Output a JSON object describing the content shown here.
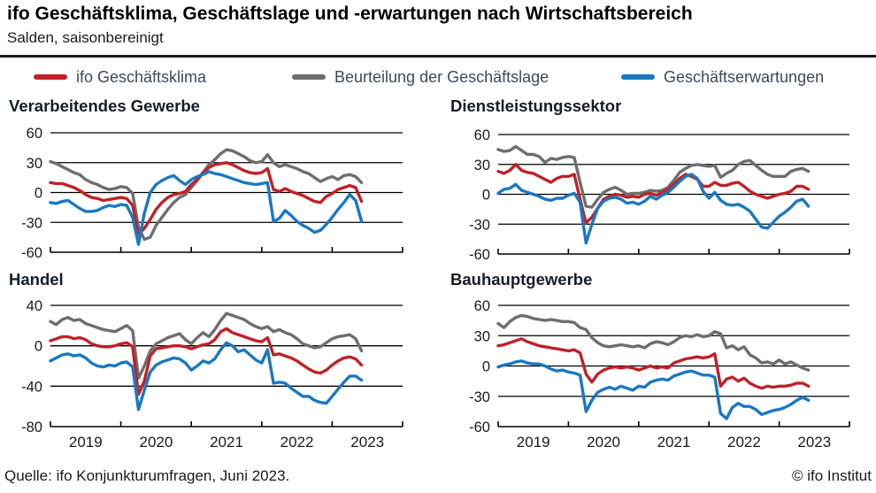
{
  "header": {
    "title": "ifo Geschäftsklima, Geschäftslage und -erwartungen nach Wirtschaftsbereich",
    "subtitle": "Salden, saisonbereinigt"
  },
  "colors": {
    "klima": "#bf2228",
    "lage": "#6e6e6e",
    "erwartungen": "#1a78c2",
    "axis": "#000000",
    "text": "#1a1a1a"
  },
  "legend": [
    {
      "key": "klima",
      "label": "ifo Geschäftsklima"
    },
    {
      "key": "lage",
      "label": "Beurteilung der Geschäftslage"
    },
    {
      "key": "erwartungen",
      "label": "Geschäftserwartungen"
    }
  ],
  "footer": {
    "source": "Quelle:  ifo Konjunkturumfragen,  Juni 2023.",
    "copyright": "© ifo Institut"
  },
  "chart_data": [
    {
      "type": "line",
      "title": "Verarbeitendes Gewerbe",
      "position": "top-left",
      "x_start": "2019-01",
      "x_end": "2023-06",
      "x_tick_labels": [
        "2019",
        "2020",
        "2021",
        "2022",
        "2023"
      ],
      "show_x_labels": false,
      "ylim": [
        -60,
        60
      ],
      "yticks": [
        60,
        30,
        0,
        -30,
        -60
      ],
      "series": [
        {
          "key": "lage",
          "name": "Beurteilung der Geschäftslage",
          "values": [
            31,
            29,
            26,
            23,
            20,
            18,
            13,
            10,
            8,
            5,
            3,
            4,
            6,
            5,
            -1,
            -35,
            -47,
            -45,
            -33,
            -25,
            -17,
            -10,
            -5,
            -2,
            5,
            12,
            20,
            28,
            33,
            39,
            43,
            42,
            39,
            36,
            32,
            30,
            31,
            38,
            30,
            26,
            28,
            26,
            24,
            21,
            19,
            15,
            11,
            14,
            16,
            13,
            17,
            18,
            16,
            10
          ]
        },
        {
          "key": "klima",
          "name": "ifo Geschäftsklima",
          "values": [
            10,
            9,
            9,
            7,
            5,
            2,
            -2,
            -5,
            -6,
            -8,
            -7,
            -6,
            -5,
            -6,
            -13,
            -42,
            -36,
            -27,
            -17,
            -10,
            -5,
            -2,
            -1,
            1,
            8,
            13,
            20,
            25,
            28,
            29,
            30,
            28,
            25,
            22,
            20,
            19,
            20,
            24,
            3,
            1,
            4,
            1,
            -1,
            -3,
            -6,
            -9,
            -10,
            -4,
            -1,
            3,
            5,
            7,
            5,
            -9
          ]
        },
        {
          "key": "erwartungen",
          "name": "Geschäftserwartungen",
          "values": [
            -10,
            -11,
            -9,
            -8,
            -12,
            -16,
            -19,
            -19,
            -18,
            -15,
            -13,
            -14,
            -12,
            -13,
            -25,
            -52,
            -21,
            0,
            8,
            12,
            15,
            17,
            12,
            8,
            13,
            16,
            18,
            21,
            19,
            18,
            16,
            14,
            12,
            10,
            9,
            8,
            9,
            10,
            -29,
            -26,
            -18,
            -23,
            -29,
            -33,
            -36,
            -40,
            -38,
            -32,
            -25,
            -17,
            -10,
            -2,
            -8,
            -29
          ]
        }
      ]
    },
    {
      "type": "line",
      "title": "Dienstleistungssektor",
      "position": "top-right",
      "x_start": "2019-01",
      "x_end": "2023-06",
      "x_tick_labels": [
        "2019",
        "2020",
        "2021",
        "2022",
        "2023"
      ],
      "show_x_labels": false,
      "ylim": [
        -60,
        60
      ],
      "yticks": [
        60,
        30,
        0,
        -30,
        -60
      ],
      "series": [
        {
          "key": "lage",
          "name": "Beurteilung der Geschäftslage",
          "values": [
            45,
            43,
            44,
            48,
            44,
            40,
            40,
            38,
            32,
            36,
            35,
            37,
            38,
            37,
            12,
            -12,
            -13,
            -5,
            2,
            5,
            7,
            4,
            0,
            1,
            1,
            2,
            4,
            3,
            4,
            7,
            14,
            22,
            26,
            29,
            30,
            29,
            28,
            29,
            17,
            21,
            24,
            30,
            33,
            34,
            29,
            24,
            20,
            18,
            18,
            18,
            23,
            25,
            26,
            23
          ]
        },
        {
          "key": "klima",
          "name": "ifo Geschäftsklima",
          "values": [
            23,
            21,
            24,
            30,
            24,
            22,
            21,
            18,
            15,
            12,
            16,
            18,
            18,
            20,
            -5,
            -29,
            -23,
            -14,
            -5,
            -2,
            0,
            -1,
            -3,
            -2,
            -3,
            0,
            1,
            -1,
            2,
            5,
            10,
            16,
            20,
            18,
            15,
            8,
            8,
            12,
            9,
            9,
            11,
            12,
            8,
            3,
            0,
            -2,
            -4,
            -2,
            0,
            1,
            3,
            8,
            8,
            5
          ]
        },
        {
          "key": "erwartungen",
          "name": "Geschäftserwartungen",
          "values": [
            1,
            5,
            6,
            10,
            4,
            2,
            0,
            -2,
            -5,
            -6,
            -4,
            -4,
            -1,
            1,
            -8,
            -49,
            -30,
            -14,
            -7,
            -4,
            -3,
            -5,
            -9,
            -8,
            -10,
            -7,
            -2,
            -5,
            -1,
            2,
            7,
            13,
            18,
            20,
            16,
            3,
            -4,
            2,
            -6,
            -10,
            -11,
            -10,
            -13,
            -17,
            -25,
            -33,
            -34,
            -28,
            -22,
            -18,
            -13,
            -7,
            -5,
            -12
          ]
        }
      ]
    },
    {
      "type": "line",
      "title": "Handel",
      "position": "bottom-left",
      "x_start": "2019-01",
      "x_end": "2023-06",
      "x_tick_labels": [
        "2019",
        "2020",
        "2021",
        "2022",
        "2023"
      ],
      "show_x_labels": true,
      "ylim": [
        -80,
        40
      ],
      "yticks": [
        40,
        0,
        -40,
        -80
      ],
      "series": [
        {
          "key": "lage",
          "name": "Beurteilung der Geschäftslage",
          "values": [
            24,
            21,
            26,
            28,
            25,
            26,
            22,
            20,
            18,
            16,
            15,
            14,
            17,
            20,
            15,
            -32,
            -20,
            -5,
            2,
            5,
            8,
            10,
            12,
            6,
            2,
            8,
            13,
            9,
            16,
            25,
            32,
            30,
            28,
            26,
            22,
            19,
            17,
            19,
            14,
            16,
            13,
            11,
            7,
            2,
            0,
            -2,
            -1,
            3,
            7,
            9,
            10,
            11,
            7,
            -5
          ]
        },
        {
          "key": "klima",
          "name": "ifo Geschäftsklima",
          "values": [
            5,
            7,
            9,
            9,
            7,
            8,
            6,
            2,
            0,
            -1,
            -1,
            0,
            2,
            3,
            -1,
            -48,
            -35,
            -10,
            -3,
            -2,
            -1,
            0,
            0,
            -1,
            -3,
            -1,
            1,
            2,
            6,
            14,
            17,
            13,
            11,
            9,
            7,
            5,
            4,
            8,
            -9,
            -8,
            -10,
            -12,
            -15,
            -19,
            -23,
            -26,
            -27,
            -24,
            -19,
            -15,
            -12,
            -11,
            -13,
            -19
          ]
        },
        {
          "key": "erwartungen",
          "name": "Geschäftserwartungen",
          "values": [
            -15,
            -12,
            -9,
            -8,
            -10,
            -9,
            -12,
            -17,
            -20,
            -21,
            -19,
            -20,
            -17,
            -16,
            -21,
            -63,
            -44,
            -26,
            -19,
            -16,
            -14,
            -12,
            -13,
            -17,
            -24,
            -20,
            -15,
            -17,
            -13,
            -4,
            3,
            0,
            -6,
            -4,
            -9,
            -14,
            -17,
            -4,
            -37,
            -36,
            -37,
            -42,
            -46,
            -50,
            -50,
            -54,
            -56,
            -57,
            -50,
            -43,
            -36,
            -30,
            -30,
            -34
          ]
        }
      ]
    },
    {
      "type": "line",
      "title": "Bauhauptgewerbe",
      "position": "bottom-right",
      "x_start": "2019-01",
      "x_end": "2023-06",
      "x_tick_labels": [
        "2019",
        "2020",
        "2021",
        "2022",
        "2023"
      ],
      "show_x_labels": true,
      "ylim": [
        -60,
        60
      ],
      "yticks": [
        60,
        30,
        0,
        -30,
        -60
      ],
      "series": [
        {
          "key": "lage",
          "name": "Beurteilung der Geschäftslage",
          "values": [
            42,
            38,
            44,
            48,
            50,
            49,
            47,
            46,
            45,
            46,
            45,
            44,
            44,
            43,
            38,
            36,
            28,
            23,
            20,
            19,
            20,
            21,
            20,
            19,
            20,
            18,
            22,
            24,
            23,
            21,
            24,
            28,
            30,
            29,
            31,
            29,
            30,
            34,
            32,
            18,
            20,
            16,
            19,
            11,
            8,
            3,
            4,
            2,
            6,
            2,
            4,
            1,
            -2,
            -4
          ]
        },
        {
          "key": "klima",
          "name": "ifo Geschäftsklima",
          "values": [
            20,
            21,
            23,
            25,
            27,
            24,
            22,
            20,
            19,
            18,
            17,
            16,
            15,
            16,
            13,
            -8,
            -16,
            -8,
            -4,
            -2,
            -1,
            -2,
            -1,
            -2,
            -4,
            -2,
            0,
            -2,
            -1,
            -2,
            3,
            5,
            7,
            8,
            9,
            8,
            9,
            12,
            -20,
            -13,
            -11,
            -15,
            -12,
            -17,
            -20,
            -22,
            -20,
            -21,
            -20,
            -20,
            -19,
            -17,
            -17,
            -20
          ]
        },
        {
          "key": "erwartungen",
          "name": "Geschäftserwartungen",
          "values": [
            -1,
            1,
            2,
            4,
            5,
            3,
            2,
            2,
            0,
            -3,
            -5,
            -4,
            -6,
            -7,
            -9,
            -45,
            -34,
            -26,
            -23,
            -21,
            -23,
            -20,
            -22,
            -24,
            -20,
            -21,
            -16,
            -14,
            -13,
            -14,
            -10,
            -8,
            -6,
            -5,
            -7,
            -9,
            -9,
            -11,
            -47,
            -52,
            -41,
            -37,
            -40,
            -40,
            -43,
            -48,
            -46,
            -44,
            -43,
            -41,
            -38,
            -34,
            -31,
            -34
          ]
        }
      ]
    }
  ]
}
